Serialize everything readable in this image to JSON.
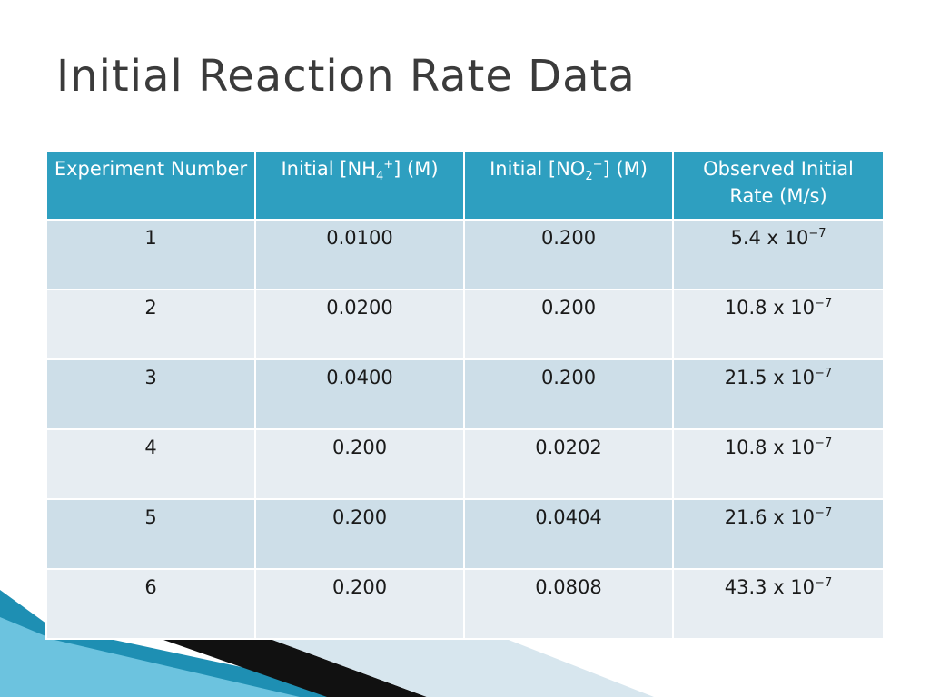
{
  "slide": {
    "title": "Initial Reaction Rate Data"
  },
  "table": {
    "headers": {
      "experiment": "Experiment Number",
      "nh4": {
        "pre": "Initial [NH",
        "sub": "4",
        "sup": "+",
        "post": "] (M)"
      },
      "no2": {
        "pre": "Initial [NO",
        "sub": "2",
        "sup": "−",
        "post": "] (M)"
      },
      "rate": "Observed Initial Rate (M/s)"
    },
    "rows": [
      {
        "experiment": "1",
        "nh4": "0.0100",
        "no2": "0.200",
        "rate_base": "5.4 x 10",
        "rate_exp": "−7"
      },
      {
        "experiment": "2",
        "nh4": "0.0200",
        "no2": "0.200",
        "rate_base": "10.8 x 10",
        "rate_exp": "−7"
      },
      {
        "experiment": "3",
        "nh4": "0.0400",
        "no2": "0.200",
        "rate_base": "21.5 x 10",
        "rate_exp": "−7"
      },
      {
        "experiment": "4",
        "nh4": "0.200",
        "no2": "0.0202",
        "rate_base": "10.8 x 10",
        "rate_exp": "−7"
      },
      {
        "experiment": "5",
        "nh4": "0.200",
        "no2": "0.0404",
        "rate_base": "21.6 x 10",
        "rate_exp": "−7"
      },
      {
        "experiment": "6",
        "nh4": "0.200",
        "no2": "0.0808",
        "rate_base": "43.3 x 10",
        "rate_exp": "−7"
      }
    ]
  },
  "colors": {
    "header": "#2e9fc0",
    "row_odd": "#cddee8",
    "row_even": "#e7edf2",
    "accent": "#1e8fb3"
  }
}
